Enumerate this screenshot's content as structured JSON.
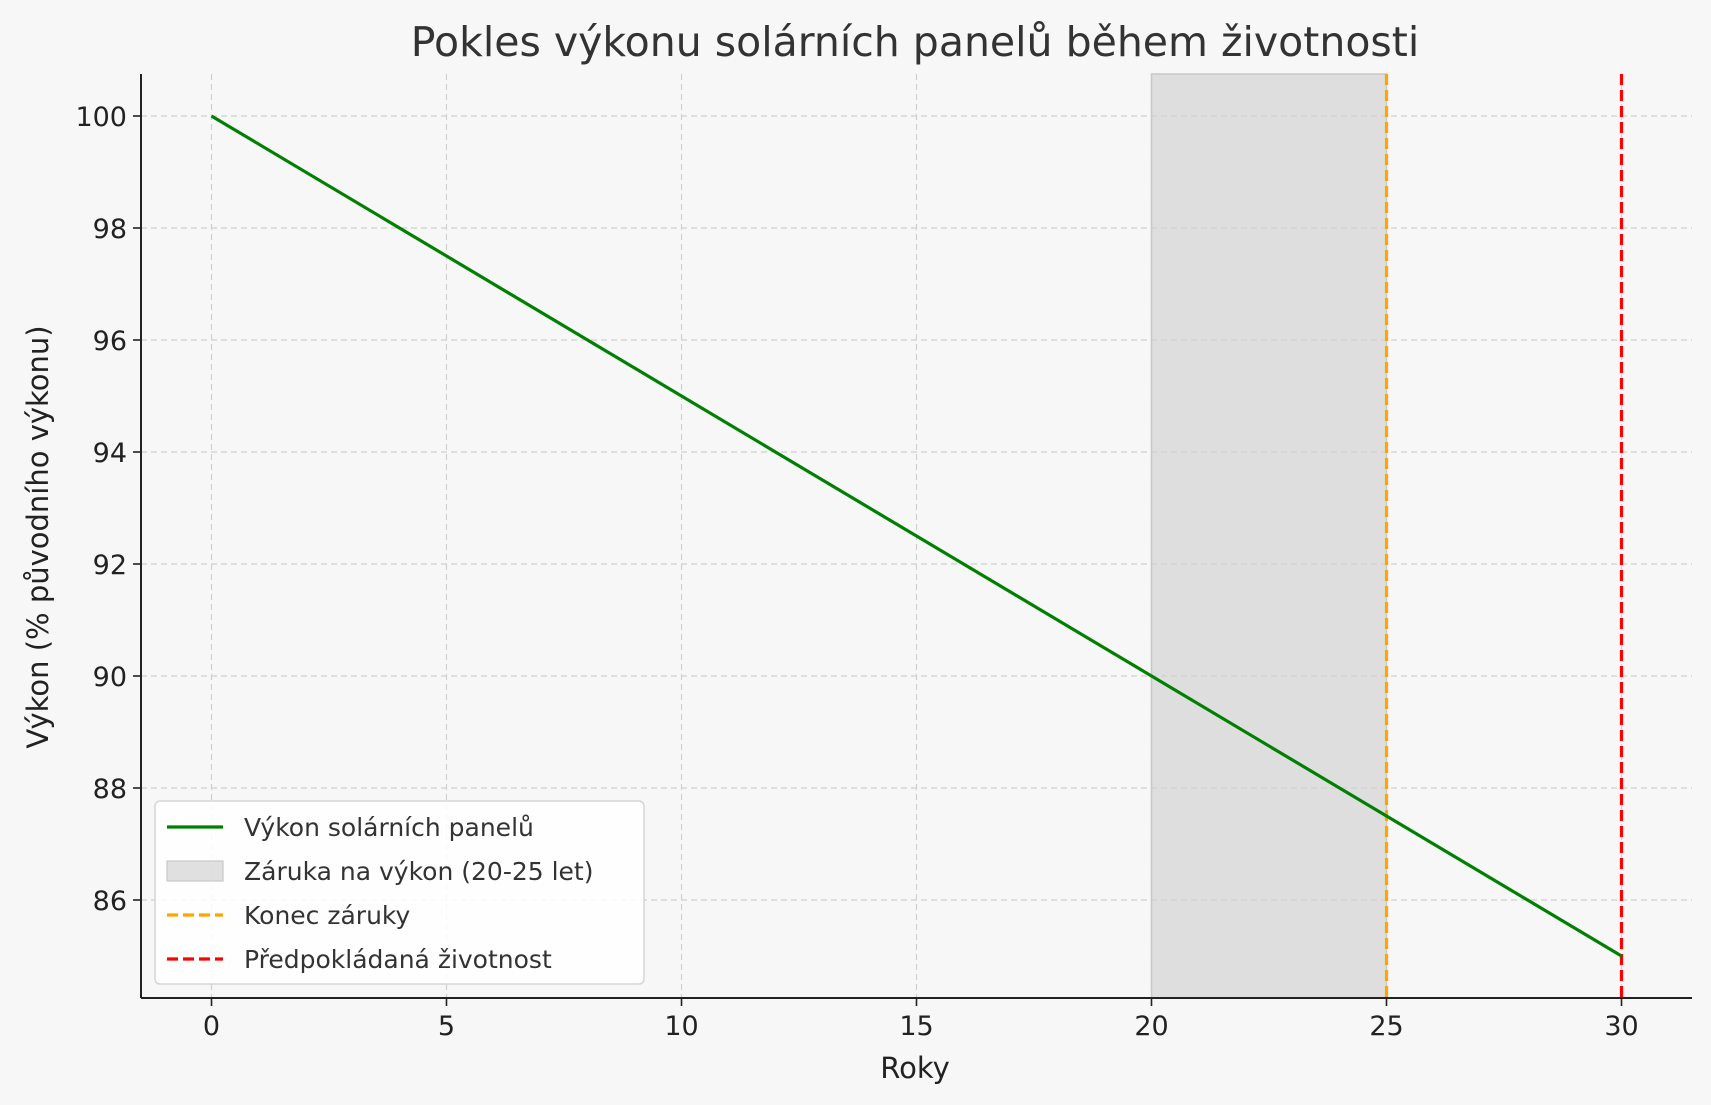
{
  "chart_data": {
    "type": "line",
    "title": "Pokles výkonu solárních panelů během životnosti",
    "xlabel": "Roky",
    "ylabel": "Výkon (% původního výkonu)",
    "xlim": [
      -1.5,
      31.5
    ],
    "ylim": [
      84.25,
      100.75
    ],
    "xticks": [
      0,
      5,
      10,
      15,
      20,
      25,
      30
    ],
    "yticks": [
      86,
      88,
      90,
      92,
      94,
      96,
      98,
      100
    ],
    "grid": true,
    "legend_position": "lower-left",
    "series": [
      {
        "name": "Výkon solárních panelů",
        "color": "#008000",
        "style": "solid",
        "x": [
          0,
          5,
          10,
          15,
          20,
          25,
          30
        ],
        "y": [
          100,
          97.5,
          95,
          92.5,
          90,
          87.5,
          85
        ]
      }
    ],
    "span": {
      "name": "Záruka na výkon (20-25 let)",
      "x_from": 20,
      "x_to": 25,
      "color": "#d3d3d3"
    },
    "vlines": [
      {
        "name": "Konec záruky",
        "x": 25,
        "color": "#ffa500",
        "style": "dashed"
      },
      {
        "name": "Předpokládaná životnost",
        "x": 30,
        "color": "#ff0000",
        "style": "dashed"
      }
    ],
    "legend": [
      {
        "label": "Výkon solárních panelů",
        "kind": "line",
        "color": "#008000"
      },
      {
        "label": "Záruka na výkon (20-25 let)",
        "kind": "patch",
        "color": "#d3d3d3"
      },
      {
        "label": "Konec záruky",
        "kind": "dashed",
        "color": "#ffa500"
      },
      {
        "label": "Předpokládaná životnost",
        "kind": "dashed",
        "color": "#ff0000"
      }
    ]
  }
}
